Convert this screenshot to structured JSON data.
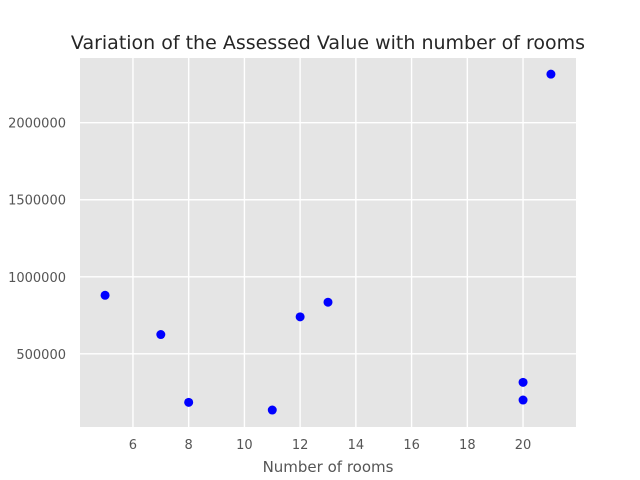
{
  "chart_data": {
    "type": "scatter",
    "title": "Variation of the Assessed Value with number of rooms",
    "xlabel": "Number of rooms",
    "ylabel": "",
    "xlim": [
      4.1,
      21.9
    ],
    "ylim": [
      25000,
      2420000
    ],
    "x_ticks": [
      6,
      8,
      10,
      12,
      14,
      16,
      18,
      20
    ],
    "y_ticks": [
      500000,
      1000000,
      1500000,
      2000000
    ],
    "grid": true,
    "legend": "none",
    "marker_color": "#0000ff",
    "background_color": "#e5e5e5",
    "grid_color": "#ffffff",
    "points": [
      {
        "x": 5,
        "y": 880000
      },
      {
        "x": 7,
        "y": 625000
      },
      {
        "x": 8,
        "y": 185000
      },
      {
        "x": 11,
        "y": 135000
      },
      {
        "x": 12,
        "y": 740000
      },
      {
        "x": 13,
        "y": 835000
      },
      {
        "x": 20,
        "y": 315000
      },
      {
        "x": 20,
        "y": 200000
      },
      {
        "x": 21,
        "y": 2315000
      }
    ]
  }
}
